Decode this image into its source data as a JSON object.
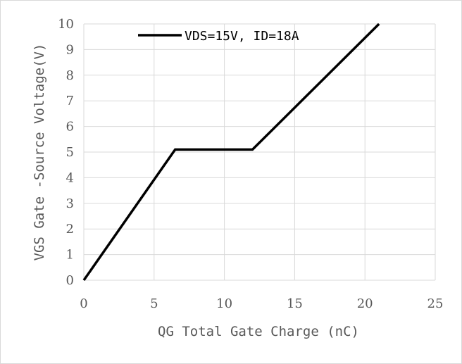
{
  "chart_data": {
    "type": "line",
    "xlabel": "QG Total Gate Charge (nC)",
    "ylabel": "VGS Gate -Source Voltage(V)",
    "xlim": [
      0,
      25
    ],
    "ylim": [
      0,
      10
    ],
    "x_ticks": [
      "0",
      "5",
      "10",
      "15",
      "20",
      "25"
    ],
    "y_ticks": [
      "0",
      "1",
      "2",
      "3",
      "4",
      "5",
      "6",
      "7",
      "8",
      "9",
      "10"
    ],
    "grid": true,
    "legend": "top-left",
    "series": [
      {
        "name": "VDS=15V, ID=18A",
        "color": "#000000",
        "x": [
          0,
          6.5,
          12,
          21
        ],
        "y": [
          0,
          5.1,
          5.1,
          10
        ]
      }
    ]
  }
}
